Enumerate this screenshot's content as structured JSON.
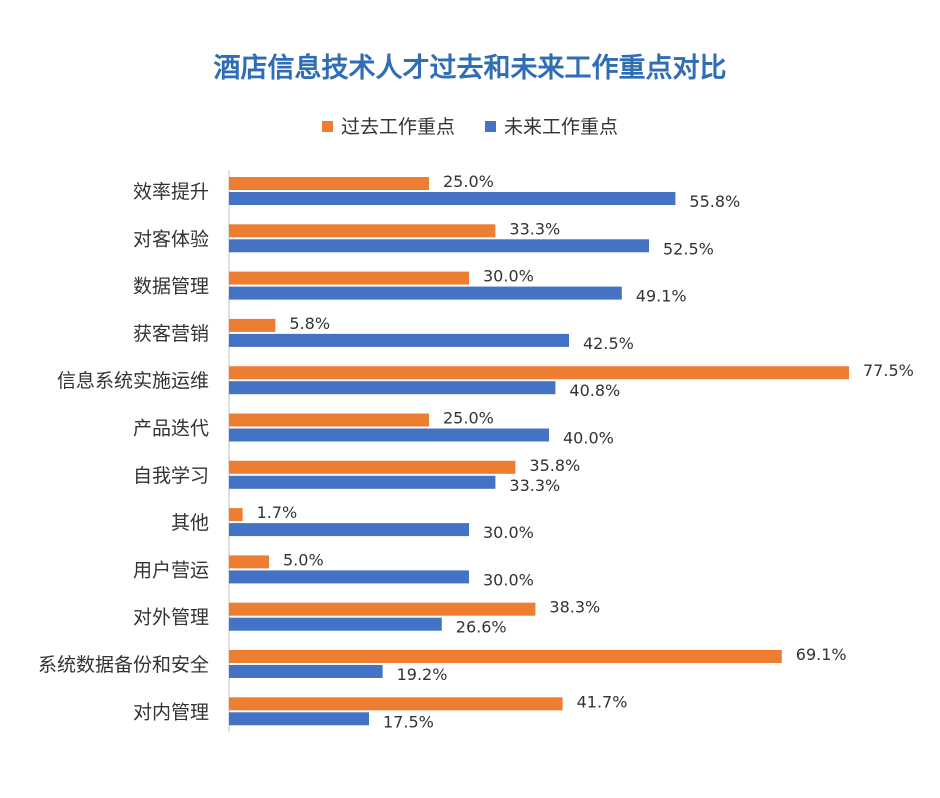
{
  "chart_data": {
    "type": "bar",
    "orientation": "horizontal",
    "title": "酒店信息技术人才过去和未来工作重点对比",
    "legend_position": "top",
    "grid": false,
    "xlim": [
      0,
      80
    ],
    "categories": [
      "效率提升",
      "对客体验",
      "数据管理",
      "获客营销",
      "信息系统实施运维",
      "产品迭代",
      "自我学习",
      "其他",
      "用户营运",
      "对外管理",
      "系统数据备份和安全",
      "对内管理"
    ],
    "series": [
      {
        "name": "过去工作重点",
        "color": "#ed7d31",
        "values": [
          25.0,
          33.3,
          30.0,
          5.8,
          77.5,
          25.0,
          35.8,
          1.7,
          5.0,
          38.3,
          69.1,
          41.7
        ],
        "labels": [
          "25.0%",
          "33.3%",
          "30.0%",
          "5.8%",
          "77.5%",
          "25.0%",
          "35.8%",
          "1.7%",
          "5.0%",
          "38.3%",
          "69.1%",
          "41.7%"
        ]
      },
      {
        "name": "未来工作重点",
        "color": "#4472c4",
        "values": [
          55.8,
          52.5,
          49.1,
          42.5,
          40.8,
          40.0,
          33.3,
          30.0,
          30.0,
          26.6,
          19.2,
          17.5
        ],
        "labels": [
          "55.8%",
          "52.5%",
          "49.1%",
          "42.5%",
          "40.8%",
          "40.0%",
          "33.3%",
          "30.0%",
          "30.0%",
          "26.6%",
          "19.2%",
          "17.5%"
        ]
      }
    ]
  }
}
